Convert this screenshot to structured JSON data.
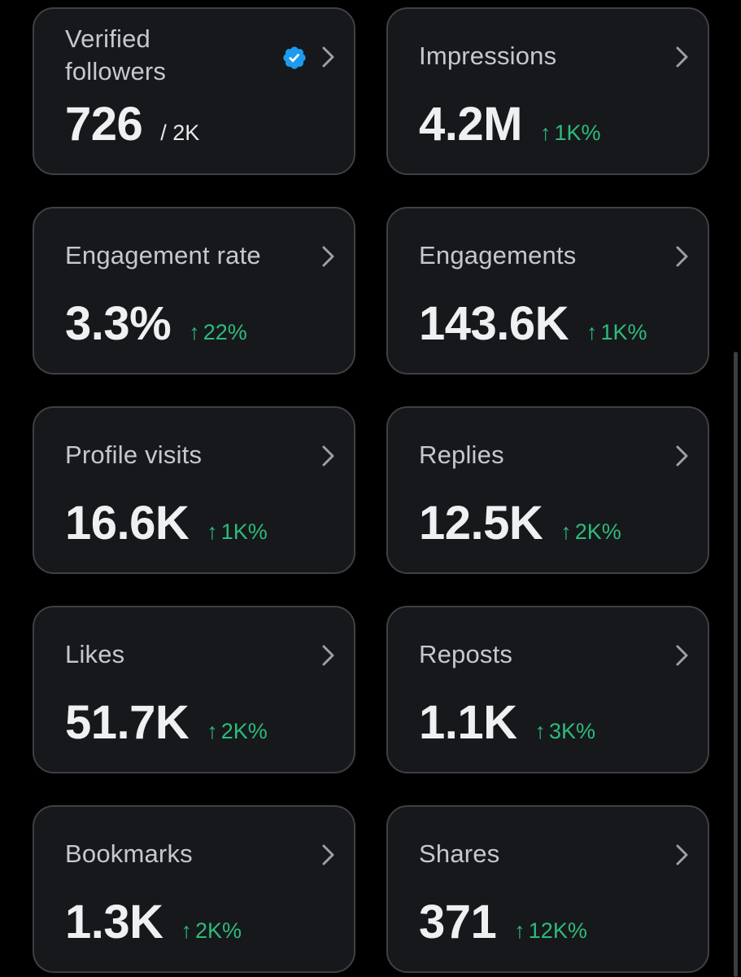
{
  "colors": {
    "background": "#000000",
    "card_background": "#16181c",
    "card_border": "#3e4144",
    "label_text": "#c5c8cc",
    "value_text": "#eef0f2",
    "positive_change": "#2dbb7a",
    "verified_badge": "#1d9bf0"
  },
  "metrics": [
    {
      "label": "Verified followers",
      "value": "726",
      "total": "/ 2K",
      "icon": "verified-badge-icon",
      "chevron": "chevron-right-icon"
    },
    {
      "label": "Impressions",
      "value": "4.2M",
      "change_arrow": "↑",
      "change": "1K%",
      "chevron": "chevron-right-icon"
    },
    {
      "label": "Engagement rate",
      "value": "3.3%",
      "change_arrow": "↑",
      "change": "22%",
      "chevron": "chevron-right-icon"
    },
    {
      "label": "Engagements",
      "value": "143.6K",
      "change_arrow": "↑",
      "change": "1K%",
      "chevron": "chevron-right-icon"
    },
    {
      "label": "Profile visits",
      "value": "16.6K",
      "change_arrow": "↑",
      "change": "1K%",
      "chevron": "chevron-right-icon"
    },
    {
      "label": "Replies",
      "value": "12.5K",
      "change_arrow": "↑",
      "change": "2K%",
      "chevron": "chevron-right-icon"
    },
    {
      "label": "Likes",
      "value": "51.7K",
      "change_arrow": "↑",
      "change": "2K%",
      "chevron": "chevron-right-icon"
    },
    {
      "label": "Reposts",
      "value": "1.1K",
      "change_arrow": "↑",
      "change": "3K%",
      "chevron": "chevron-right-icon"
    },
    {
      "label": "Bookmarks",
      "value": "1.3K",
      "change_arrow": "↑",
      "change": "2K%",
      "chevron": "chevron-right-icon"
    },
    {
      "label": "Shares",
      "value": "371",
      "change_arrow": "↑",
      "change": "12K%",
      "chevron": "chevron-right-icon"
    }
  ]
}
